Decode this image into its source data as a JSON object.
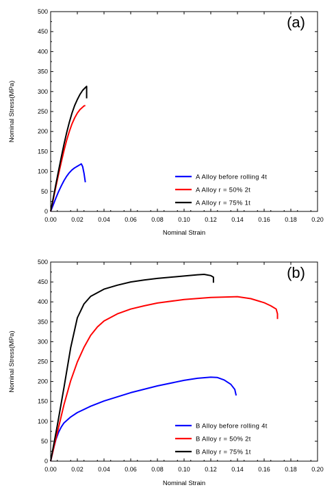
{
  "chart_data": [
    {
      "type": "line",
      "panel_label": "(a)",
      "xlabel": "Nominal Strain",
      "ylabel": "Nominal Stress(MPa)",
      "xlim": [
        0,
        0.2
      ],
      "ylim": [
        0,
        500
      ],
      "x_ticks": [
        "0.00",
        "0.02",
        "0.04",
        "0.06",
        "0.08",
        "0.10",
        "0.12",
        "0.14",
        "0.16",
        "0.18",
        "0.20"
      ],
      "y_ticks": [
        "0",
        "50",
        "100",
        "150",
        "200",
        "250",
        "300",
        "350",
        "400",
        "450",
        "500"
      ],
      "grid": false,
      "legend_position": "bottom-right",
      "series": [
        {
          "name": "A Alloy  before  rolling  4t",
          "color": "#0000ff",
          "x": [
            0,
            0.002,
            0.004,
            0.006,
            0.008,
            0.01,
            0.012,
            0.014,
            0.016,
            0.018,
            0.02,
            0.022,
            0.023,
            0.024,
            0.025,
            0.026
          ],
          "y": [
            0,
            17,
            34,
            50,
            64,
            77,
            88,
            97,
            104,
            109,
            113,
            117,
            119,
            112,
            95,
            73
          ]
        },
        {
          "name": "A Alloy  r = 50%   2t",
          "color": "#ff0000",
          "x": [
            0,
            0.002,
            0.004,
            0.006,
            0.008,
            0.01,
            0.012,
            0.014,
            0.016,
            0.018,
            0.02,
            0.022,
            0.024,
            0.025,
            0.026
          ],
          "y": [
            0,
            31,
            63,
            94,
            124,
            152,
            178,
            200,
            219,
            234,
            246,
            255,
            261,
            264,
            265
          ]
        },
        {
          "name": "A Alloy  r = 75%   1t",
          "color": "#000000",
          "x": [
            0,
            0.002,
            0.004,
            0.006,
            0.008,
            0.01,
            0.012,
            0.014,
            0.016,
            0.018,
            0.02,
            0.022,
            0.024,
            0.026,
            0.027,
            0.027
          ],
          "y": [
            0,
            34,
            69,
            103,
            136,
            168,
            197,
            223,
            246,
            265,
            280,
            293,
            303,
            310,
            313,
            283
          ]
        }
      ]
    },
    {
      "type": "line",
      "panel_label": "(b)",
      "xlabel": "Nominal Strain",
      "ylabel": "Nominal Stress(MPa)",
      "xlim": [
        0,
        0.2
      ],
      "ylim": [
        0,
        500
      ],
      "x_ticks": [
        "0.00",
        "0.02",
        "0.04",
        "0.06",
        "0.08",
        "0.10",
        "0.12",
        "0.14",
        "0.16",
        "0.18",
        "0.20"
      ],
      "y_ticks": [
        "0",
        "50",
        "100",
        "150",
        "200",
        "250",
        "300",
        "350",
        "400",
        "450",
        "500"
      ],
      "grid": false,
      "legend_position": "bottom-right",
      "series": [
        {
          "name": "B Alloy  before  rolling  4t",
          "color": "#0000ff",
          "x": [
            0,
            0.002,
            0.004,
            0.006,
            0.008,
            0.01,
            0.015,
            0.02,
            0.03,
            0.04,
            0.06,
            0.08,
            0.1,
            0.11,
            0.12,
            0.125,
            0.13,
            0.135,
            0.138,
            0.139
          ],
          "y": [
            0,
            29,
            55,
            73,
            86,
            96,
            111,
            122,
            138,
            151,
            172,
            189,
            203,
            208,
            211,
            210,
            204,
            193,
            180,
            165
          ]
        },
        {
          "name": "B Alloy  r = 50%   2t",
          "color": "#ff0000",
          "x": [
            0,
            0.005,
            0.01,
            0.015,
            0.02,
            0.025,
            0.03,
            0.035,
            0.04,
            0.05,
            0.06,
            0.07,
            0.08,
            0.1,
            0.12,
            0.14,
            0.15,
            0.16,
            0.165,
            0.169,
            0.17,
            0.17
          ],
          "y": [
            0,
            72,
            142,
            202,
            249,
            286,
            316,
            337,
            352,
            370,
            382,
            390,
            397,
            406,
            411,
            413,
            408,
            398,
            390,
            382,
            370,
            357
          ]
        },
        {
          "name": "B Alloy  r = 75%   1t",
          "color": "#000000",
          "x": [
            0,
            0.005,
            0.01,
            0.015,
            0.02,
            0.025,
            0.03,
            0.04,
            0.05,
            0.06,
            0.07,
            0.08,
            0.09,
            0.1,
            0.11,
            0.115,
            0.12,
            0.122,
            0.122
          ],
          "y": [
            0,
            90,
            185,
            285,
            360,
            395,
            414,
            432,
            442,
            450,
            455,
            459,
            462,
            465,
            468,
            469,
            466,
            462,
            448
          ]
        }
      ]
    }
  ]
}
